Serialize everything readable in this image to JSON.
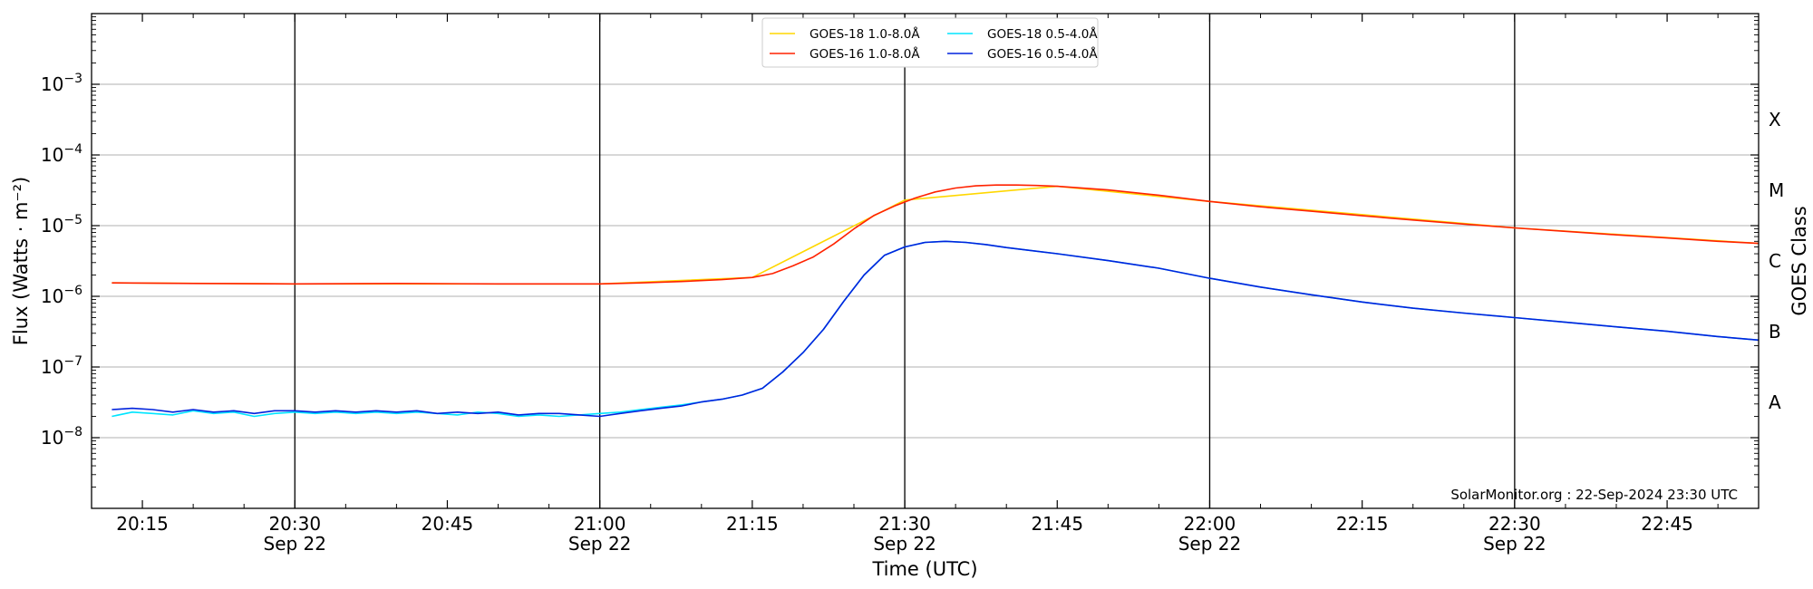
{
  "chart_data": {
    "type": "line",
    "xlabel": "Time (UTC)",
    "ylabel": "Flux (Watts · m⁻²)",
    "right_label": "GOES Class",
    "credit": "SolarMonitor.org : 22-Sep-2024 23:30 UTC",
    "x_unit": "minutes after 20:00 UTC, 22-Sep-2024",
    "xlim": [
      10,
      284
    ],
    "ylim": [
      1e-09,
      0.01
    ],
    "y_scale": "log",
    "grid": "horizontal at decades",
    "legend_placement": "top-center",
    "x_ticks": [
      {
        "x": 15,
        "label": "20:15",
        "sublabel": ""
      },
      {
        "x": 30,
        "label": "20:30",
        "sublabel": "Sep 22"
      },
      {
        "x": 45,
        "label": "20:45",
        "sublabel": ""
      },
      {
        "x": 60,
        "label": "21:00",
        "sublabel": "Sep 22"
      },
      {
        "x": 75,
        "label": "21:15",
        "sublabel": ""
      },
      {
        "x": 90,
        "label": "21:30",
        "sublabel": "Sep 22"
      },
      {
        "x": 105,
        "label": "21:45",
        "sublabel": ""
      },
      {
        "x": 120,
        "label": "22:00",
        "sublabel": "Sep 22"
      },
      {
        "x": 135,
        "label": "22:15",
        "sublabel": ""
      },
      {
        "x": 150,
        "label": "22:30",
        "sublabel": "Sep 22"
      },
      {
        "x": 165,
        "label": "22:45",
        "sublabel": ""
      }
    ],
    "y_ticks": [
      {
        "value": 0.001,
        "base": "10",
        "exp": "−3"
      },
      {
        "value": 0.0001,
        "base": "10",
        "exp": "−4"
      },
      {
        "value": 1e-05,
        "base": "10",
        "exp": "−5"
      },
      {
        "value": 1e-06,
        "base": "10",
        "exp": "−6"
      },
      {
        "value": 1e-07,
        "base": "10",
        "exp": "−7"
      },
      {
        "value": 1e-08,
        "base": "10",
        "exp": "−8"
      }
    ],
    "class_labels": [
      {
        "label": "X",
        "value": 0.000316
      },
      {
        "label": "M",
        "value": 3.16e-05
      },
      {
        "label": "C",
        "value": 3.16e-06
      },
      {
        "label": "B",
        "value": 3.16e-07
      },
      {
        "label": "A",
        "value": 3.16e-08
      }
    ],
    "vlines": [
      30,
      60,
      90,
      120,
      150
    ],
    "series": [
      {
        "name": "GOES-18 1.0-8.0Å",
        "color": "#ffd700",
        "x": [
          12,
          30,
          60,
          75,
          90,
          105,
          120,
          150,
          174
        ],
        "y": [
          1.55e-06,
          1.5e-06,
          1.5e-06,
          1.85e-06,
          2.3e-05,
          3.6e-05,
          2.2e-05,
          9.3e-06,
          5.6e-06
        ]
      },
      {
        "name": "GOES-18 0.5-4.0Å",
        "color": "#00e5ff",
        "x": [
          12,
          14,
          16,
          18,
          20,
          22,
          24,
          26,
          28,
          30,
          32,
          34,
          36,
          38,
          40,
          42,
          44,
          46,
          48,
          50,
          52,
          54,
          56,
          58,
          60,
          62,
          64,
          66,
          68,
          70,
          72,
          74,
          76,
          78,
          80,
          82,
          84,
          86,
          88,
          90,
          92,
          94,
          96,
          98,
          100,
          105,
          110,
          115,
          120,
          125,
          130,
          135,
          140,
          145,
          150,
          155,
          160,
          165,
          170,
          174
        ],
        "y": [
          2e-08,
          2.3e-08,
          2.2e-08,
          2.1e-08,
          2.4e-08,
          2.2e-08,
          2.3e-08,
          2e-08,
          2.2e-08,
          2.3e-08,
          2.2e-08,
          2.3e-08,
          2.2e-08,
          2.3e-08,
          2.2e-08,
          2.3e-08,
          2.2e-08,
          2.1e-08,
          2.3e-08,
          2.2e-08,
          2e-08,
          2.1e-08,
          2e-08,
          2.1e-08,
          2.2e-08,
          2.3e-08,
          2.5e-08,
          2.7e-08,
          2.9e-08,
          3.2e-08,
          3.5e-08,
          4e-08,
          5e-08,
          8.5e-08,
          1.6e-07,
          3.4e-07,
          8.5e-07,
          2e-06,
          3.8e-06,
          5e-06,
          5.8e-06,
          6e-06,
          5.8e-06,
          5.4e-06,
          4.9e-06,
          4e-06,
          3.2e-06,
          2.5e-06,
          1.8e-06,
          1.35e-06,
          1.05e-06,
          8.3e-07,
          6.8e-07,
          5.8e-07,
          5e-07,
          4.3e-07,
          3.7e-07,
          3.2e-07,
          2.7e-07,
          2.4e-07
        ]
      },
      {
        "name": "GOES-16 1.0-8.0Å",
        "color": "#ff2200",
        "x": [
          12,
          20,
          30,
          40,
          50,
          60,
          64,
          68,
          72,
          75,
          77,
          79,
          81,
          83,
          85,
          87,
          89,
          91,
          93,
          95,
          97,
          99,
          101,
          103,
          105,
          110,
          115,
          120,
          125,
          130,
          135,
          140,
          145,
          150,
          155,
          160,
          165,
          170,
          174
        ],
        "y": [
          1.55e-06,
          1.52e-06,
          1.5e-06,
          1.52e-06,
          1.5e-06,
          1.5e-06,
          1.55e-06,
          1.62e-06,
          1.72e-06,
          1.85e-06,
          2.1e-06,
          2.7e-06,
          3.6e-06,
          5.5e-06,
          9e-06,
          1.4e-05,
          1.9e-05,
          2.45e-05,
          3e-05,
          3.4e-05,
          3.65e-05,
          3.75e-05,
          3.75e-05,
          3.7e-05,
          3.6e-05,
          3.2e-05,
          2.7e-05,
          2.2e-05,
          1.85e-05,
          1.6e-05,
          1.38e-05,
          1.2e-05,
          1.05e-05,
          9.3e-06,
          8.3e-06,
          7.4e-06,
          6.7e-06,
          6e-06,
          5.6e-06
        ]
      },
      {
        "name": "GOES-16 0.5-4.0Å",
        "color": "#0022dd",
        "x": [
          12,
          14,
          16,
          18,
          20,
          22,
          24,
          26,
          28,
          30,
          32,
          34,
          36,
          38,
          40,
          42,
          44,
          46,
          48,
          50,
          52,
          54,
          56,
          58,
          60,
          62,
          64,
          66,
          68,
          70,
          72,
          74,
          76,
          78,
          80,
          82,
          84,
          86,
          88,
          90,
          92,
          94,
          96,
          98,
          100,
          105,
          110,
          115,
          120,
          125,
          130,
          135,
          140,
          145,
          150,
          155,
          160,
          165,
          170,
          174
        ],
        "y": [
          2.5e-08,
          2.6e-08,
          2.5e-08,
          2.3e-08,
          2.5e-08,
          2.3e-08,
          2.4e-08,
          2.2e-08,
          2.4e-08,
          2.4e-08,
          2.3e-08,
          2.4e-08,
          2.3e-08,
          2.4e-08,
          2.3e-08,
          2.4e-08,
          2.2e-08,
          2.3e-08,
          2.2e-08,
          2.3e-08,
          2.1e-08,
          2.2e-08,
          2.2e-08,
          2.1e-08,
          2e-08,
          2.2e-08,
          2.4e-08,
          2.6e-08,
          2.8e-08,
          3.2e-08,
          3.5e-08,
          4e-08,
          5e-08,
          8.5e-08,
          1.6e-07,
          3.4e-07,
          8.5e-07,
          2e-06,
          3.8e-06,
          5e-06,
          5.8e-06,
          6e-06,
          5.8e-06,
          5.4e-06,
          4.9e-06,
          4e-06,
          3.2e-06,
          2.5e-06,
          1.8e-06,
          1.35e-06,
          1.05e-06,
          8.3e-07,
          6.8e-07,
          5.8e-07,
          5e-07,
          4.3e-07,
          3.7e-07,
          3.2e-07,
          2.7e-07,
          2.4e-07
        ]
      }
    ]
  }
}
